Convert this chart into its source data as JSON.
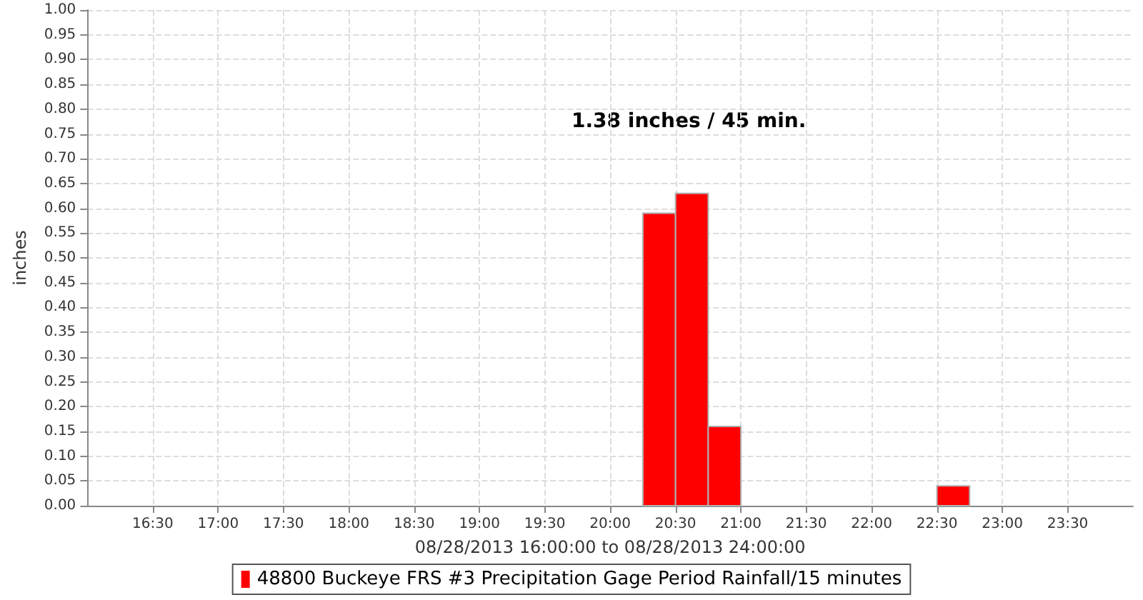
{
  "chart_data": {
    "type": "histogram",
    "xlabel": "08/28/2013 16:00:00 to 08/28/2013 24:00:00",
    "ylabel": "inches",
    "annotations": [
      "1.38 inches / 45 min."
    ],
    "bins": [
      16,
      16.25,
      16.5,
      16.75,
      17,
      17.25,
      17.5,
      17.75,
      18,
      18.25,
      18.5,
      18.75,
      19,
      19.25,
      19.5,
      19.75,
      20,
      20.25,
      20.5,
      20.75,
      21,
      21.25,
      21.5,
      21.75,
      22,
      22.25,
      22.5,
      22.75,
      23,
      23.25,
      23.5,
      23.75,
      24
    ],
    "series": [
      {
        "name": "48800 Buckeye FRS #3 Precipitation Gage Period Rainfall/15 minutes",
        "color": "#ff0000",
        "values": [
          0,
          0,
          0,
          0,
          0,
          0,
          0,
          0,
          0,
          0,
          0,
          0,
          0,
          0,
          0,
          0,
          0,
          0.59,
          0.63,
          0.16,
          0,
          0,
          0,
          0,
          0,
          0,
          0.04,
          0,
          0,
          0,
          0,
          0
        ]
      }
    ],
    "xlim": [
      16,
      24
    ],
    "xticks": [
      {
        "value": 16.5,
        "label": "16:30"
      },
      {
        "value": 17,
        "label": "17:00"
      },
      {
        "value": 17.5,
        "label": "17:30"
      },
      {
        "value": 18,
        "label": "18:00"
      },
      {
        "value": 18.5,
        "label": "18:30"
      },
      {
        "value": 19,
        "label": "19:00"
      },
      {
        "value": 19.5,
        "label": "19:30"
      },
      {
        "value": 20,
        "label": "20:00"
      },
      {
        "value": 20.5,
        "label": "20:30"
      },
      {
        "value": 21,
        "label": "21:00"
      },
      {
        "value": 21.5,
        "label": "21:30"
      },
      {
        "value": 22,
        "label": "22:00"
      },
      {
        "value": 22.5,
        "label": "22:30"
      },
      {
        "value": 23,
        "label": "23:00"
      },
      {
        "value": 23.5,
        "label": "23:30"
      }
    ],
    "ylim": [
      0,
      1
    ],
    "yticks": [
      {
        "value": 0,
        "label": "0.00"
      },
      {
        "value": 0.05,
        "label": "0.05"
      },
      {
        "value": 0.1,
        "label": "0.10"
      },
      {
        "value": 0.15,
        "label": "0.15"
      },
      {
        "value": 0.2,
        "label": "0.20"
      },
      {
        "value": 0.25,
        "label": "0.25"
      },
      {
        "value": 0.3,
        "label": "0.30"
      },
      {
        "value": 0.35,
        "label": "0.35"
      },
      {
        "value": 0.4,
        "label": "0.40"
      },
      {
        "value": 0.45,
        "label": "0.45"
      },
      {
        "value": 0.5,
        "label": "0.50"
      },
      {
        "value": 0.55,
        "label": "0.55"
      },
      {
        "value": 0.6,
        "label": "0.60"
      },
      {
        "value": 0.65,
        "label": "0.65"
      },
      {
        "value": 0.7,
        "label": "0.70"
      },
      {
        "value": 0.75,
        "label": "0.75"
      },
      {
        "value": 0.8,
        "label": "0.80"
      },
      {
        "value": 0.85,
        "label": "0.85"
      },
      {
        "value": 0.9,
        "label": "0.90"
      },
      {
        "value": 0.95,
        "label": "0.95"
      },
      {
        "value": 1,
        "label": "1.00"
      }
    ],
    "grid": true,
    "legend": "bottom"
  }
}
